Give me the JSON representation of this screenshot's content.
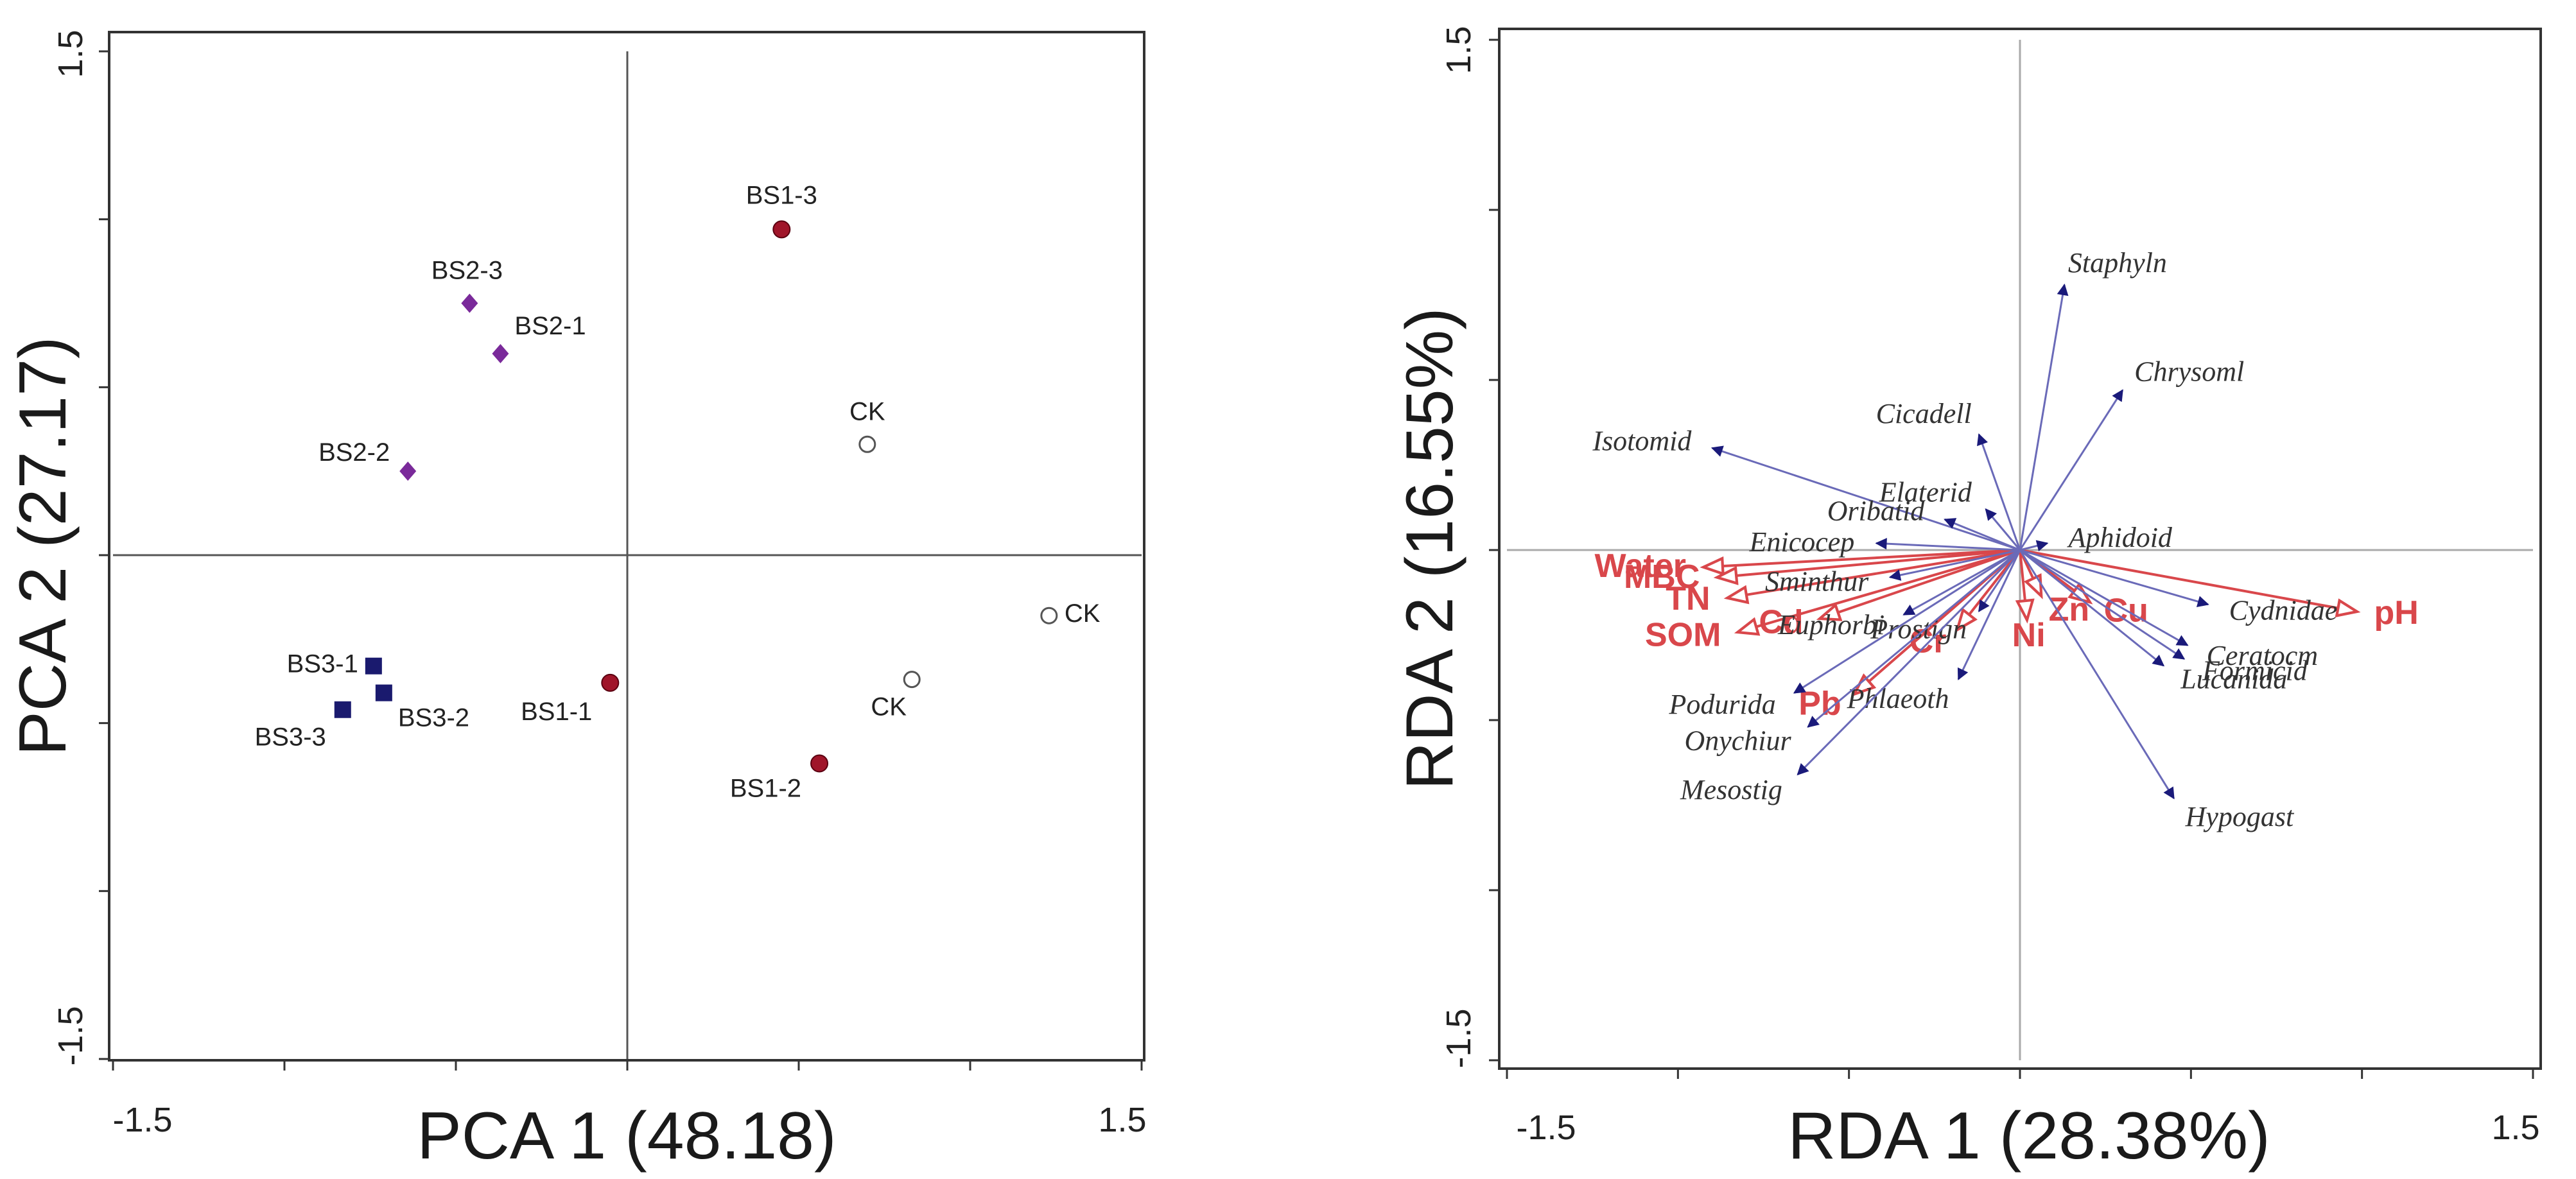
{
  "chart_data": [
    {
      "type": "scatter",
      "title": "",
      "xlabel": "PCA 1 (48.18)",
      "ylabel": "PCA 2 (27.17)",
      "xlim": [
        -1.5,
        1.5
      ],
      "ylim": [
        -1.5,
        1.5
      ],
      "xtick_labels": [
        "-1.5",
        "1.5"
      ],
      "ytick_labels": [
        "1.5",
        "-1.5"
      ],
      "tick_step": 0.5,
      "zero_lines": true,
      "series": [
        {
          "name": "CK",
          "marker": "open-circle",
          "color": "#555555",
          "points": [
            {
              "label": "CK",
              "x": 0.7,
              "y": 0.33
            },
            {
              "label": "CK",
              "x": 1.23,
              "y": -0.18
            },
            {
              "label": "CK",
              "x": 0.83,
              "y": -0.37
            }
          ]
        },
        {
          "name": "BS1",
          "marker": "filled-circle",
          "color": "#a0152a",
          "points": [
            {
              "label": "BS1-3",
              "x": 0.45,
              "y": 0.97
            },
            {
              "label": "BS1-1",
              "x": -0.05,
              "y": -0.38
            },
            {
              "label": "BS1-2",
              "x": 0.56,
              "y": -0.62
            }
          ]
        },
        {
          "name": "BS2",
          "marker": "diamond",
          "color": "#7a2a9a",
          "points": [
            {
              "label": "BS2-3",
              "x": -0.46,
              "y": 0.75
            },
            {
              "label": "BS2-1",
              "x": -0.37,
              "y": 0.6
            },
            {
              "label": "BS2-2",
              "x": -0.64,
              "y": 0.25
            }
          ]
        },
        {
          "name": "BS3",
          "marker": "square",
          "color": "#1a1a6e",
          "points": [
            {
              "label": "BS3-1",
              "x": -0.74,
              "y": -0.33
            },
            {
              "label": "BS3-2",
              "x": -0.71,
              "y": -0.41
            },
            {
              "label": "BS3-3",
              "x": -0.83,
              "y": -0.46
            }
          ]
        }
      ]
    },
    {
      "type": "biplot",
      "title": "",
      "xlabel": "RDA 1 (28.38%)",
      "ylabel": "RDA 2 (16.55%)",
      "xlim": [
        -1.5,
        1.5
      ],
      "ylim": [
        -1.5,
        1.5
      ],
      "xtick_labels": [
        "-1.5",
        "1.5"
      ],
      "ytick_labels": [
        "1.5",
        "-1.5"
      ],
      "tick_step": 0.5,
      "zero_lines": true,
      "species_color": "#1a1a7a",
      "environment_color": "#d9474b",
      "species": [
        {
          "name": "Staphyln",
          "x": 0.13,
          "y": 0.78
        },
        {
          "name": "Chrysoml",
          "x": 0.3,
          "y": 0.47
        },
        {
          "name": "Cicadell",
          "x": -0.12,
          "y": 0.34
        },
        {
          "name": "Isotomid",
          "x": -0.9,
          "y": 0.3
        },
        {
          "name": "Elaterid",
          "x": -0.1,
          "y": 0.12
        },
        {
          "name": "Oribatid",
          "x": -0.22,
          "y": 0.09
        },
        {
          "name": "Enicocep",
          "x": -0.42,
          "y": 0.02
        },
        {
          "name": "Aphidoid",
          "x": 0.08,
          "y": 0.02
        },
        {
          "name": "Sminthur",
          "x": -0.38,
          "y": -0.08
        },
        {
          "name": "Euphorbi",
          "x": -0.34,
          "y": -0.19
        },
        {
          "name": "Prostign",
          "x": -0.12,
          "y": -0.18
        },
        {
          "name": "Phlaeoth",
          "x": -0.18,
          "y": -0.38
        },
        {
          "name": "Podurida",
          "x": -0.66,
          "y": -0.42
        },
        {
          "name": "Onychiur",
          "x": -0.62,
          "y": -0.52
        },
        {
          "name": "Mesostig",
          "x": -0.65,
          "y": -0.66
        },
        {
          "name": "Cydnidae",
          "x": 0.55,
          "y": -0.16
        },
        {
          "name": "Ceratocm",
          "x": 0.49,
          "y": -0.28
        },
        {
          "name": "Formicid",
          "x": 0.48,
          "y": -0.32
        },
        {
          "name": "Lucanida",
          "x": 0.42,
          "y": -0.34
        },
        {
          "name": "Hypogast",
          "x": 0.45,
          "y": -0.73
        }
      ],
      "environment": [
        {
          "name": "Water",
          "x": -0.92,
          "y": -0.05
        },
        {
          "name": "MBC",
          "x": -0.88,
          "y": -0.08
        },
        {
          "name": "TN",
          "x": -0.85,
          "y": -0.14
        },
        {
          "name": "SOM",
          "x": -0.82,
          "y": -0.24
        },
        {
          "name": "Cd",
          "x": -0.58,
          "y": -0.2
        },
        {
          "name": "Pb",
          "x": -0.48,
          "y": -0.42
        },
        {
          "name": "Cr",
          "x": -0.18,
          "y": -0.23
        },
        {
          "name": "Ni",
          "x": 0.02,
          "y": -0.2
        },
        {
          "name": "Zn",
          "x": 0.06,
          "y": -0.13
        },
        {
          "name": "Cu",
          "x": 0.2,
          "y": -0.15
        },
        {
          "name": "pH",
          "x": 0.98,
          "y": -0.18
        }
      ]
    }
  ]
}
